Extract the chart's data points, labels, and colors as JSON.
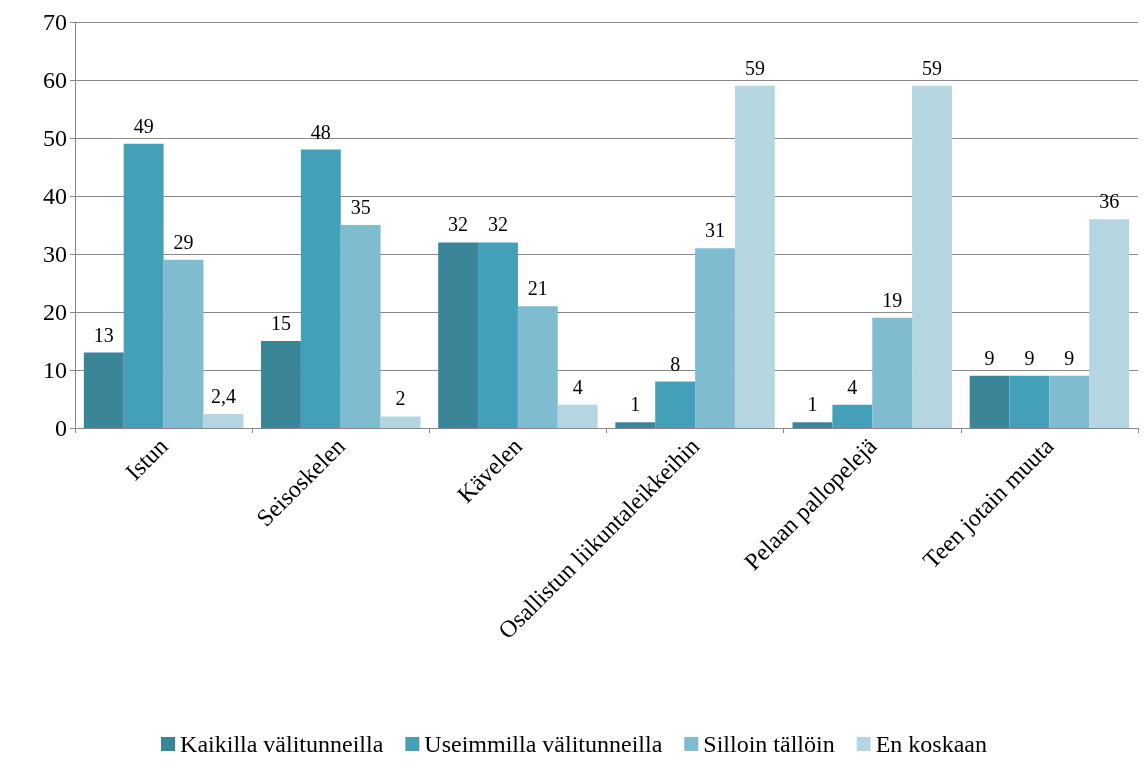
{
  "chart_data": {
    "type": "bar",
    "categories": [
      "Istun",
      "Seisoskelen",
      "Kävelen",
      "Osallistun liikuntaleikkeihin",
      "Pelaan pallopelejä",
      "Teen jotain muuta"
    ],
    "series": [
      {
        "name": "Kaikilla välitunneilla",
        "color": "#3a8598",
        "values": [
          13,
          15,
          32,
          1,
          1,
          9
        ],
        "value_labels": [
          "13",
          "15",
          "32",
          "1",
          "1",
          "9"
        ]
      },
      {
        "name": "Useimmilla välitunneilla",
        "color": "#44a0b8",
        "values": [
          49,
          48,
          32,
          8,
          4,
          9
        ],
        "value_labels": [
          "49",
          "48",
          "32",
          "8",
          "4",
          "9"
        ]
      },
      {
        "name": "Silloin tällöin",
        "color": "#80bcd0",
        "values": [
          29,
          35,
          21,
          31,
          19,
          9
        ],
        "value_labels": [
          "29",
          "35",
          "21",
          "31",
          "19",
          "9"
        ]
      },
      {
        "name": "En koskaan",
        "color": "#b5d5e0",
        "values": [
          2.4,
          2,
          4,
          59,
          59,
          36
        ],
        "value_labels": [
          "2,4",
          "2",
          "4",
          "59",
          "59",
          "36"
        ]
      }
    ],
    "ylim": [
      0,
      70
    ],
    "yticks": [
      0,
      10,
      20,
      30,
      40,
      50,
      60,
      70
    ],
    "grid": "y",
    "legend": "bottom"
  }
}
